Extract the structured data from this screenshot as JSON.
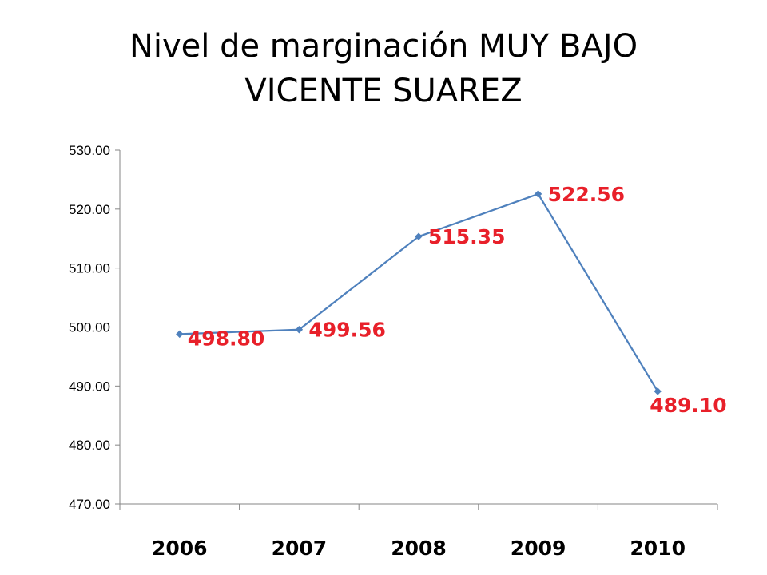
{
  "slide": {
    "title_line1": "Nivel de marginación MUY BAJO",
    "title_line2": "VICENTE SUAREZ"
  },
  "chart_data": {
    "type": "line",
    "title": "",
    "xlabel": "",
    "ylabel": "",
    "categories": [
      "2006",
      "2007",
      "2008",
      "2009",
      "2010"
    ],
    "series": [
      {
        "values": [
          498.8,
          499.56,
          515.35,
          522.56,
          489.1
        ],
        "data_labels": [
          "498.80",
          "499.56",
          "515.35",
          "522.56",
          "489.10"
        ]
      }
    ],
    "ylim": [
      470,
      530
    ],
    "yticks": [
      470,
      480,
      490,
      500,
      510,
      520,
      530
    ],
    "ytick_labels": [
      "470.00",
      "480.00",
      "490.00",
      "500.00",
      "510.00",
      "520.00",
      "530.00"
    ],
    "grid": false,
    "legend": "none",
    "line_color": "#4F81BD",
    "label_color": "#E8202A",
    "axis_color": "#868686"
  }
}
